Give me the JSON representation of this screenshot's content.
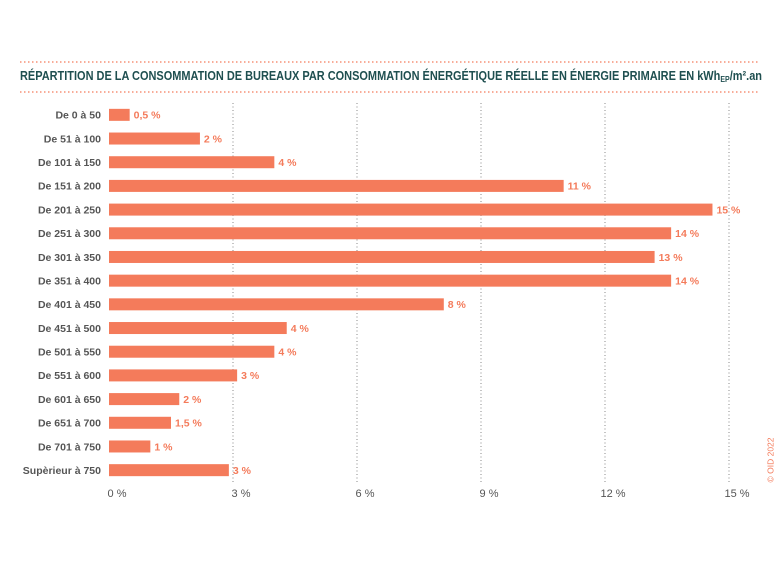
{
  "chart_data": {
    "type": "bar",
    "orientation": "horizontal",
    "title": [
      "RÉPARTITION DE LA CONSOMMATION DE BUREAUX PAR CONSOMMATION ÉNERGÉTIQUE RÉELLE EN ÉNERGIE PRIMAIRE EN kWh",
      "EP",
      "/m².an"
    ],
    "credit": "© OID 2022",
    "categories": [
      "De 0 à 50",
      "De 51 à 100",
      "De 101 à 150",
      "De 151 à 200",
      "De 201 à 250",
      "De 251 à 300",
      "De 301 à 350",
      "De 351 à 400",
      "De 401 à 450",
      "De 451 à 500",
      "De 501 à 550",
      "De 551 à 600",
      "De 601 à 650",
      "De 651 à 700",
      "De 701 à 750",
      "Supèrieur à 750"
    ],
    "values": [
      0.5,
      2.2,
      4.0,
      11.0,
      14.6,
      13.6,
      13.2,
      13.6,
      8.1,
      4.3,
      4.0,
      3.1,
      1.7,
      1.5,
      1.0,
      2.9
    ],
    "value_labels": [
      "0,5 %",
      "2 %",
      "4 %",
      "11 %",
      "15 %",
      "14 %",
      "13 %",
      "14 %",
      "8 %",
      "4 %",
      "4 %",
      "3 %",
      "2 %",
      "1,5 %",
      "1 %",
      "3 %"
    ],
    "color": "#f47b5b",
    "xlim": [
      0,
      15
    ],
    "xticks": [
      {
        "value": 0,
        "label": "0 %"
      },
      {
        "value": 3,
        "label": "3 %"
      },
      {
        "value": 6,
        "label": "6 %"
      },
      {
        "value": 9,
        "label": "9 %"
      },
      {
        "value": 12,
        "label": "12 %"
      },
      {
        "value": 15,
        "label": "15 %"
      }
    ],
    "grid": true
  }
}
